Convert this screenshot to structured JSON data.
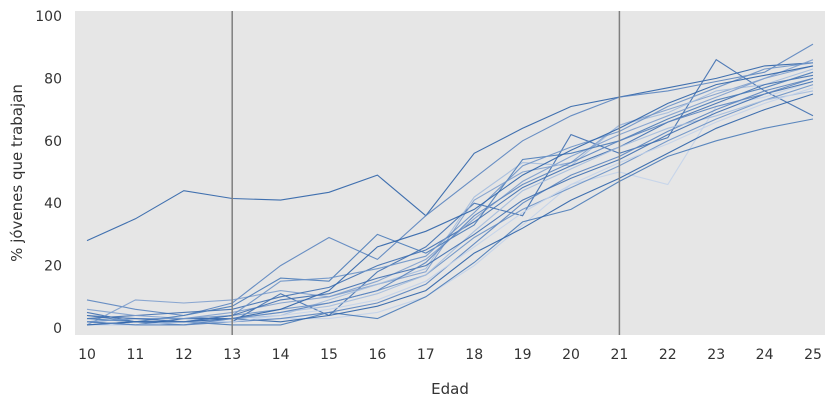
{
  "chart_data": {
    "type": "line",
    "xlabel": "Edad",
    "ylabel": "% jóvenes que trabajan",
    "x": [
      10,
      11,
      12,
      13,
      14,
      15,
      16,
      17,
      18,
      19,
      20,
      21,
      22,
      23,
      24,
      25
    ],
    "xlim": [
      10,
      25
    ],
    "ylim": [
      0,
      100
    ],
    "y_ticks": [
      0,
      20,
      40,
      60,
      80,
      100
    ],
    "x_ticks": [
      10,
      11,
      12,
      13,
      14,
      15,
      16,
      17,
      18,
      19,
      20,
      21,
      22,
      23,
      24,
      25
    ],
    "reference_lines_x": [
      13,
      21
    ],
    "grid": false,
    "colors": {
      "plot_background": "#e6e6e6",
      "reference_line": "#7f7f7f",
      "series_palette": [
        "#2e63a8",
        "#3f6fb0",
        "#5a84bf",
        "#7e9fcd",
        "#a4bcde",
        "#c3d3ea",
        "#4a7bb8",
        "#6c92c6"
      ]
    },
    "series": [
      {
        "values": [
          28,
          35,
          44,
          41.5,
          41,
          43.5,
          49,
          36,
          56,
          64,
          71,
          74,
          77,
          80,
          84,
          85
        ]
      },
      {
        "values": [
          5,
          2,
          2,
          2,
          11,
          4,
          18,
          26,
          40,
          36,
          62,
          56,
          61,
          86,
          76,
          68
        ]
      },
      {
        "values": [
          9,
          6,
          4,
          8,
          20,
          29,
          22,
          36,
          48,
          60,
          68,
          74,
          76,
          79,
          82,
          91
        ]
      },
      {
        "values": [
          1,
          9,
          8,
          9,
          12,
          10,
          14,
          18,
          41,
          50,
          53,
          65,
          70,
          75,
          80,
          84
        ]
      },
      {
        "values": [
          1,
          1,
          1,
          3,
          4,
          9,
          14,
          19,
          42,
          53,
          52,
          65,
          69,
          76,
          78,
          83
        ]
      },
      {
        "values": [
          2,
          3,
          3,
          2,
          3,
          3,
          5,
          10,
          20,
          33,
          46,
          50,
          46,
          71,
          74,
          79
        ]
      },
      {
        "values": [
          4,
          2,
          2,
          1,
          1,
          5,
          3,
          10,
          21,
          34,
          38,
          47,
          55,
          60,
          64,
          67
        ]
      },
      {
        "values": [
          1,
          2,
          2,
          4,
          6,
          8,
          12,
          17,
          29,
          38,
          45,
          52,
          60,
          67,
          73,
          78
        ]
      },
      {
        "values": [
          2,
          1,
          3,
          3,
          2,
          4,
          7,
          12,
          24,
          32,
          41,
          48,
          56,
          64,
          70,
          75
        ]
      },
      {
        "values": [
          3,
          4,
          5,
          6,
          10,
          13,
          20,
          25,
          34,
          45,
          52,
          58,
          66,
          72,
          78,
          81
        ]
      },
      {
        "values": [
          1,
          2,
          1,
          2,
          3,
          5,
          8,
          14,
          27,
          40,
          49,
          55,
          63,
          70,
          76,
          80
        ]
      },
      {
        "values": [
          6,
          4,
          3,
          5,
          8,
          10,
          15,
          22,
          35,
          47,
          55,
          62,
          68,
          74,
          80,
          86
        ]
      },
      {
        "values": [
          2,
          3,
          2,
          3,
          5,
          7,
          11,
          17,
          31,
          44,
          51,
          58,
          64,
          68,
          73,
          76
        ]
      },
      {
        "values": [
          1,
          1,
          2,
          2,
          4,
          6,
          9,
          15,
          26,
          37,
          46,
          53,
          59,
          66,
          72,
          77
        ]
      },
      {
        "values": [
          3,
          2,
          4,
          7,
          16,
          15,
          30,
          24,
          33,
          54,
          56,
          60,
          67,
          73,
          77,
          82
        ]
      },
      {
        "values": [
          2,
          3,
          3,
          4,
          15,
          16,
          19,
          23,
          37,
          52,
          58,
          63,
          71,
          77,
          83,
          85
        ]
      },
      {
        "values": [
          1,
          2,
          2,
          3,
          6,
          12,
          26,
          31,
          38,
          49,
          57,
          64,
          72,
          78,
          81,
          84
        ]
      },
      {
        "values": [
          4,
          3,
          2,
          4,
          9,
          11,
          16,
          20,
          30,
          41,
          48,
          54,
          62,
          69,
          75,
          79
        ]
      },
      {
        "values": [
          2,
          1,
          1,
          3,
          5,
          8,
          12,
          21,
          36,
          46,
          53,
          60,
          66,
          71,
          75,
          80
        ]
      }
    ]
  }
}
